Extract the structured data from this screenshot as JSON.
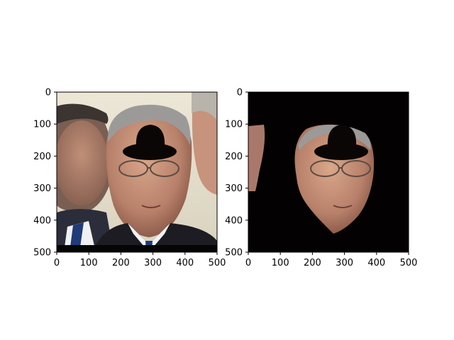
{
  "chart_data": [
    {
      "type": "image",
      "image_description": "",
      "xlim": [
        0,
        500
      ],
      "ylim": [
        500,
        0
      ],
      "xticks": [
        0,
        100,
        200,
        300,
        400,
        500
      ],
      "yticks": [
        0,
        100,
        200,
        300,
        400,
        500
      ],
      "xtick_labels": [
        "0",
        "100",
        "200",
        "300",
        "400",
        "500"
      ],
      "ytick_labels": [
        "0",
        "100",
        "200",
        "300",
        "400",
        "500"
      ],
      "grid": false
    },
    {
      "type": "image",
      "image_description": "",
      "xlim": [
        0,
        500
      ],
      "ylim": [
        500,
        0
      ],
      "xticks": [
        0,
        100,
        200,
        300,
        400,
        500
      ],
      "yticks": [
        0,
        100,
        200,
        300,
        400,
        500
      ],
      "xtick_labels": [
        "0",
        "100",
        "200",
        "300",
        "400",
        "500"
      ],
      "ytick_labels": [
        "0",
        "100",
        "200",
        "300",
        "400",
        "500"
      ],
      "grid": false
    }
  ],
  "colors": {
    "background": "#ffffff",
    "axis": "#000000",
    "mask": "#030101",
    "hat": "#0b0606",
    "wall": "#e9e2cf",
    "skin": "#c58f72",
    "suit": "#1c1c22",
    "shirt": "#f3f3f5",
    "tie": "#1f3b78"
  }
}
